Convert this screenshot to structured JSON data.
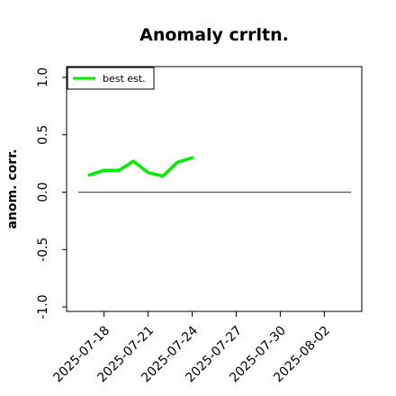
{
  "chart_data": {
    "type": "line",
    "title": "Anomaly crrltn.",
    "xlabel": "",
    "ylabel": "anom. corr.",
    "ylim": [
      -1.0,
      1.0
    ],
    "xlim": [
      "2025-07-16",
      "2025-08-04"
    ],
    "x_ticks": [
      "2025-07-18",
      "2025-07-21",
      "2025-07-24",
      "2025-07-27",
      "2025-07-30",
      "2025-08-02"
    ],
    "y_ticks": [
      "-1.0",
      "-0.5",
      "0.0",
      "0.5",
      "1.0"
    ],
    "reference_line": 0.0,
    "legend_position": "top-left",
    "series": [
      {
        "name": "best est.",
        "color": "#00ee00",
        "x": [
          "2025-07-17",
          "2025-07-18",
          "2025-07-19",
          "2025-07-20",
          "2025-07-21",
          "2025-07-22",
          "2025-07-23",
          "2025-07-24"
        ],
        "values": [
          0.15,
          0.19,
          0.19,
          0.27,
          0.17,
          0.14,
          0.26,
          0.3
        ]
      }
    ]
  }
}
